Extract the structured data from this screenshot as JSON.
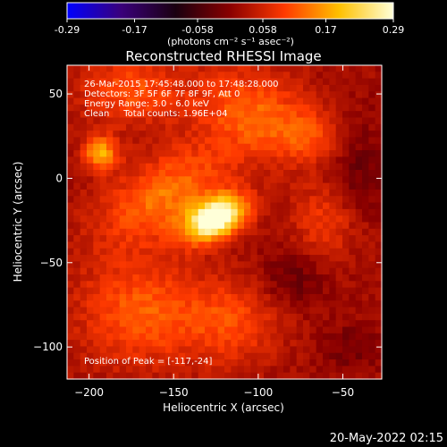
{
  "chart_data": {
    "type": "heatmap",
    "title": "Reconstructed RHESSI Image",
    "xlabel": "Heliocentric X (arcsec)",
    "ylabel": "Heliocentric Y (arcsec)",
    "xlim": [
      -213,
      -27
    ],
    "ylim": [
      -119,
      67
    ],
    "xticks": [
      -200,
      -150,
      -100,
      -50
    ],
    "yticks": [
      50,
      0,
      -50,
      -100
    ],
    "colorbar": {
      "min": -0.29,
      "max": 0.29,
      "ticks": [
        -0.29,
        -0.17,
        -0.058,
        0.058,
        0.17,
        0.29
      ],
      "tick_labels": [
        "-0.29",
        "-0.17",
        "-0.058",
        "0.058",
        "0.17",
        "0.29"
      ],
      "unit": "(photons cm⁻² s⁻¹ asec⁻²)",
      "colors": [
        "#0000ff",
        "#3a007a",
        "#1a0010",
        "#8a0000",
        "#ff3a00",
        "#ffc000",
        "#ffffd8"
      ]
    },
    "annotations": [
      "26-Mar-2015 17:45:48.000 to 17:48:28.000",
      "Detectors: 3F 5F 6F 7F 8F 9F, Att 0",
      "Energy Range: 3.0 - 6.0 keV",
      "Clean     Total counts: 1.96E+04"
    ],
    "peak_label": "Position of Peak = [-117,-24]",
    "sources": [
      {
        "x": -125,
        "y": -24,
        "sx": 13,
        "sy": 8,
        "amp": 0.31,
        "angle": 25
      },
      {
        "x": -155,
        "y": -10,
        "sx": 30,
        "sy": 16,
        "amp": 0.12,
        "angle": 30
      },
      {
        "x": -193,
        "y": 15,
        "sx": 7,
        "sy": 7,
        "amp": 0.16,
        "angle": 0
      },
      {
        "x": -175,
        "y": 52,
        "sx": 22,
        "sy": 14,
        "amp": 0.09,
        "angle": 0
      },
      {
        "x": -105,
        "y": 40,
        "sx": 24,
        "sy": 18,
        "amp": 0.1,
        "angle": -20
      },
      {
        "x": -70,
        "y": 25,
        "sx": 16,
        "sy": 12,
        "amp": 0.07,
        "angle": 0
      },
      {
        "x": -60,
        "y": -25,
        "sx": 14,
        "sy": 16,
        "amp": 0.07,
        "angle": 0
      },
      {
        "x": -170,
        "y": -80,
        "sx": 26,
        "sy": 22,
        "amp": 0.1,
        "angle": 0
      },
      {
        "x": -115,
        "y": -85,
        "sx": 20,
        "sy": 18,
        "amp": 0.08,
        "angle": 0
      },
      {
        "x": -80,
        "y": -60,
        "sx": 14,
        "sy": 12,
        "amp": -0.05,
        "angle": 0
      },
      {
        "x": -42,
        "y": 5,
        "sx": 12,
        "sy": 22,
        "amp": -0.05,
        "angle": 0
      },
      {
        "x": -45,
        "y": -100,
        "sx": 12,
        "sy": 10,
        "amp": -0.04,
        "angle": 0
      }
    ]
  },
  "footer": {
    "date": "20-May-2022 02:15"
  }
}
